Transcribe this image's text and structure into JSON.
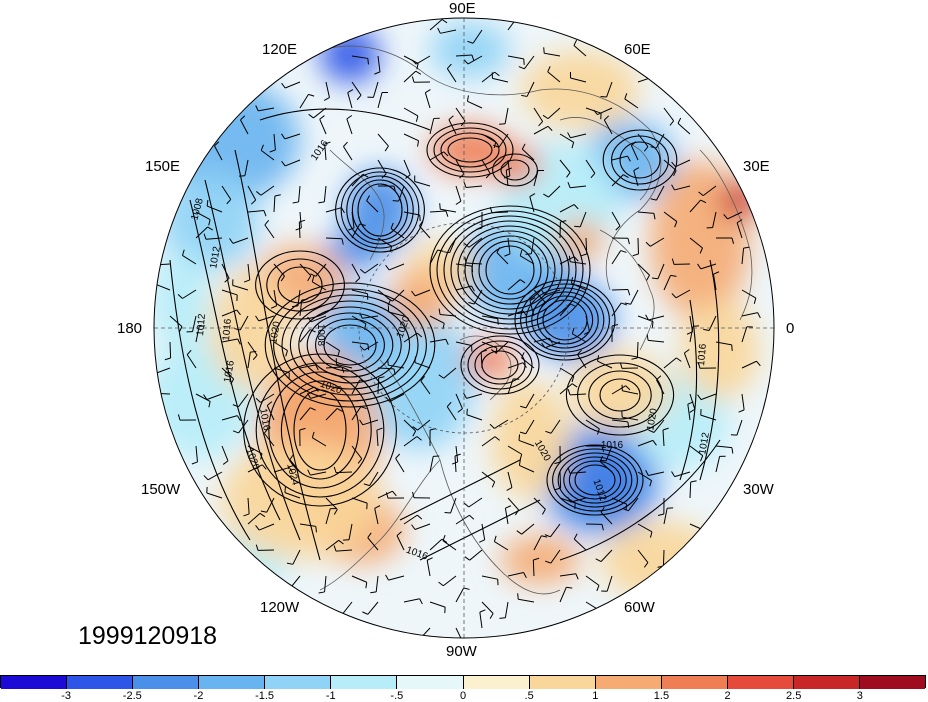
{
  "timestamp": "1999120918",
  "longitude_labels": [
    "90E",
    "60E",
    "30E",
    "0",
    "30W",
    "60W",
    "90W",
    "120W",
    "150W",
    "180",
    "150E",
    "120E"
  ],
  "contour_labels": [
    "1016",
    "1008",
    "1012",
    "1012",
    "1016",
    "1020",
    "1008",
    "1020",
    "1020",
    "1016",
    "1020",
    "1024",
    "1016",
    "1020",
    "1016",
    "1012",
    "1012",
    "1016",
    "1020",
    "1016"
  ],
  "colorbar": {
    "tick_labels": [
      "-3",
      "-2.5",
      "-2",
      "-1.5",
      "-1",
      "-.5",
      "0",
      ".5",
      "1",
      "1.5",
      "2",
      "2.5",
      "3"
    ],
    "colors": [
      "#1c0ad6",
      "#2d55e8",
      "#4a8fe8",
      "#68b4f0",
      "#8fd3f6",
      "#b6edf8",
      "#e6f7fa",
      "#fcf1cf",
      "#f9d69a",
      "#f5ab72",
      "#ef7e55",
      "#e54a3a",
      "#c92627",
      "#a00c1f"
    ]
  },
  "colors": {
    "land_outline": "#5a5a5a",
    "contour": "#000000",
    "grid": "#555555"
  }
}
